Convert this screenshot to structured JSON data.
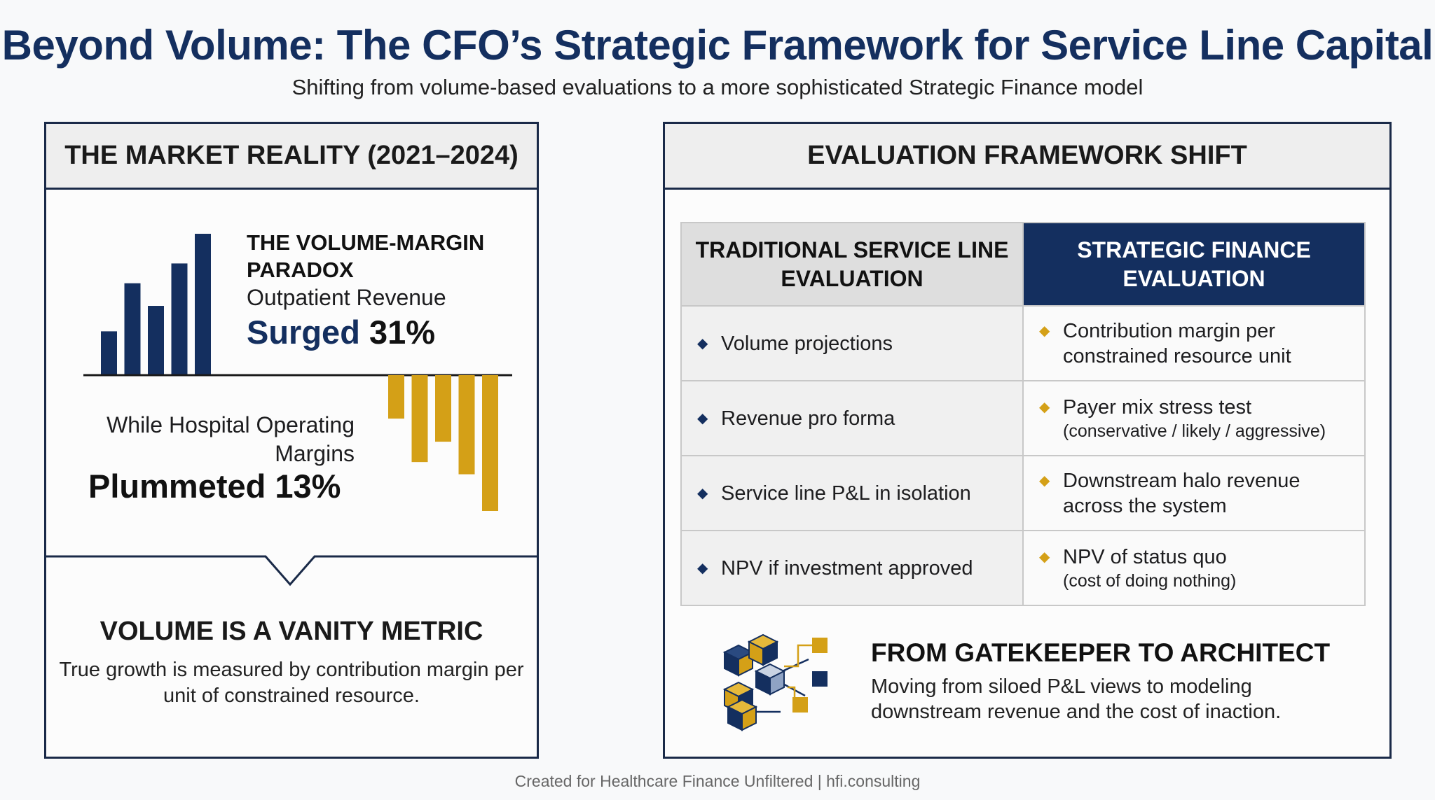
{
  "header": {
    "title": "Beyond Volume: The CFO’s Strategic Framework for Service Line Capital",
    "subtitle": "Shifting from volume-based evaluations to a more sophisticated Strategic Finance model"
  },
  "market": {
    "heading": "THE MARKET REALITY (2021–2024)",
    "paradox_title": "THE VOLUME-MARGIN PARADOX",
    "revenue_label": "Outpatient Revenue",
    "surged_word": "Surged",
    "surged_value": "31%",
    "margin_label": "While Hospital Operating Margins",
    "plummeted": "Plummeted 13%",
    "vanity_title": "VOLUME IS A VANITY METRIC",
    "vanity_text": "True growth is measured by contribution margin per unit of constrained resource."
  },
  "chart_data": [
    {
      "type": "bar",
      "series": [
        {
          "values": [
            0.31,
            0.65,
            0.49,
            0.79,
            1.0
          ]
        }
      ],
      "colors": [
        "#142f5f"
      ]
    },
    {
      "type": "bar",
      "series": [
        {
          "values": [
            -0.32,
            -0.64,
            -0.49,
            -0.73,
            -1.0
          ]
        }
      ],
      "colors": [
        "#d4a017"
      ]
    }
  ],
  "framework": {
    "heading": "EVALUATION FRAMEWORK SHIFT",
    "col_traditional": "TRADITIONAL SERVICE LINE EVALUATION",
    "col_strategic": "STRATEGIC FINANCE EVALUATION",
    "rows": [
      {
        "traditional": "Volume projections",
        "strategic": "Contribution margin per constrained resource unit",
        "strategic_note": ""
      },
      {
        "traditional": "Revenue pro forma",
        "strategic": "Payer mix stress test",
        "strategic_note": "(conservative / likely / aggressive)"
      },
      {
        "traditional": "Service line P&L in isolation",
        "strategic": "Downstream halo revenue across the system",
        "strategic_note": ""
      },
      {
        "traditional": "NPV if investment approved",
        "strategic": "NPV of status quo",
        "strategic_note": "(cost of doing nothing)"
      }
    ],
    "gatekeeper_title": "FROM GATEKEEPER TO ARCHITECT",
    "gatekeeper_text": "Moving from siloed P&L views to modeling downstream revenue and the cost of inaction."
  },
  "icons": {
    "bullet": "diamond-icon",
    "network": "cube-network-icon"
  },
  "colors": {
    "navy": "#142f5f",
    "gold": "#d4a017",
    "border": "#1a2a48"
  },
  "footer": "Created for Healthcare Finance Unfiltered | hfi.consulting"
}
